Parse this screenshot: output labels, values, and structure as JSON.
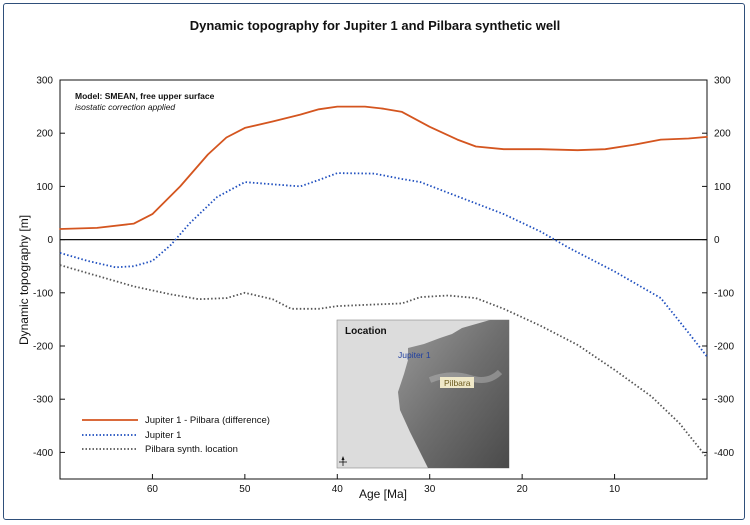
{
  "chart_data": {
    "type": "line",
    "title": "Dynamic topography for Jupiter 1 and Pilbara synthetic well",
    "xlabel": "Age [Ma]",
    "ylabel": "Dynamic topography [m]",
    "xlim": [
      70,
      0
    ],
    "ylim": [
      -450,
      300
    ],
    "x_ticks": [
      60,
      50,
      40,
      30,
      20,
      10
    ],
    "y_ticks": [
      300,
      200,
      100,
      0,
      -100,
      -200,
      -300,
      -400
    ],
    "zero_line": true,
    "annotation_line1": "Model: SMEAN, free upper surface",
    "annotation_line2": "isostatic correction applied",
    "legend_position": "bottom-left",
    "series": [
      {
        "name": "Jupiter 1 - Pilbara (difference)",
        "color": "#d4551f",
        "style": "solid",
        "x": [
          70,
          66,
          62,
          60,
          57,
          54,
          52,
          50,
          47,
          44,
          42,
          40,
          37,
          35,
          33,
          30,
          27,
          25,
          22,
          18,
          14,
          11,
          8,
          5,
          2,
          0
        ],
        "y": [
          20,
          22,
          30,
          48,
          100,
          160,
          192,
          210,
          222,
          235,
          245,
          250,
          250,
          246,
          240,
          212,
          188,
          175,
          170,
          170,
          168,
          170,
          178,
          188,
          190,
          193
        ]
      },
      {
        "name": "Jupiter 1",
        "color": "#1f4fbf",
        "style": "dotted",
        "x": [
          70,
          67,
          64,
          62,
          60,
          58,
          56,
          53,
          50,
          47,
          44,
          42,
          40,
          36,
          33,
          31,
          28,
          25,
          22,
          18,
          15,
          10,
          5,
          2,
          0
        ],
        "y": [
          -25,
          -40,
          -52,
          -50,
          -40,
          -10,
          30,
          80,
          108,
          104,
          100,
          112,
          125,
          124,
          114,
          108,
          88,
          68,
          48,
          15,
          -15,
          -60,
          -110,
          -175,
          -220
        ]
      },
      {
        "name": "Pilbara synth. location",
        "color": "#555555",
        "style": "dotted",
        "x": [
          70,
          66,
          62,
          58,
          55,
          52,
          50,
          47,
          45,
          42,
          40,
          36,
          33,
          31,
          28,
          25,
          22,
          18,
          14,
          10,
          6,
          3,
          0
        ],
        "y": [
          -48,
          -68,
          -88,
          -103,
          -112,
          -110,
          -100,
          -112,
          -130,
          -130,
          -125,
          -122,
          -120,
          -108,
          -105,
          -110,
          -130,
          -162,
          -198,
          -245,
          -295,
          -345,
          -410
        ]
      }
    ]
  },
  "inset": {
    "title": "Location",
    "label_jupiter": "Jupiter 1",
    "label_pilbara": "Pilbara",
    "icon": "north-arrow-icon"
  }
}
